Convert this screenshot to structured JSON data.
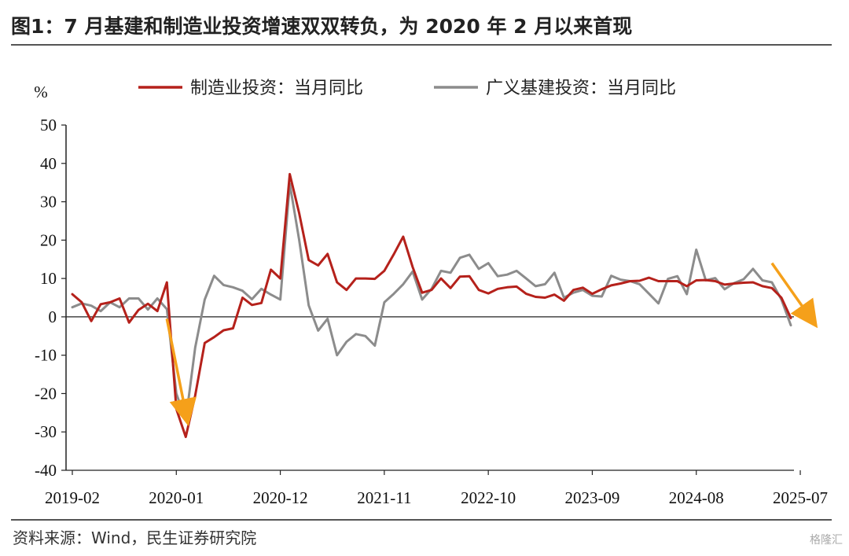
{
  "figure": {
    "title": "图1：7 月基建和制造业投资增速双双转负，为 2020 年 2 月以来首现",
    "source": "资料来源：Wind，民生证券研究院",
    "watermark": "格隆汇"
  },
  "chart_data": {
    "type": "line",
    "ylabel": "%",
    "ylim": [
      -40,
      50
    ],
    "yticks": [
      50,
      40,
      30,
      20,
      10,
      0,
      -10,
      -20,
      -30,
      -40
    ],
    "xticks": [
      "2019-02",
      "2020-01",
      "2020-12",
      "2021-11",
      "2022-10",
      "2023-09",
      "2024-08",
      "2025-07"
    ],
    "legend_position": "top",
    "grid": false,
    "series": [
      {
        "name": "制造业投资：当月同比",
        "color": "#b5211b",
        "values": [
          5.9,
          3.8,
          -1.1,
          3.3,
          3.8,
          4.8,
          -1.5,
          1.8,
          3.4,
          1.5,
          9.0,
          -24.0,
          -31.3,
          -20.5,
          -6.8,
          -5.3,
          -3.5,
          -3.0,
          5.0,
          3.1,
          3.6,
          12.3,
          10.0,
          37.2,
          27.0,
          14.8,
          13.4,
          16.4,
          9.0,
          7.0,
          10.0,
          10.0,
          9.9,
          12.0,
          16.3,
          20.9,
          13.0,
          6.3,
          7.0,
          10.0,
          7.5,
          10.5,
          10.6,
          7.0,
          6.1,
          7.3,
          7.7,
          7.9,
          6.0,
          5.2,
          5.0,
          5.8,
          4.2,
          7.0,
          7.6,
          6.0,
          7.2,
          8.2,
          8.7,
          9.3,
          9.4,
          10.2,
          9.3,
          9.3,
          9.3,
          8.0,
          9.5,
          9.6,
          9.3,
          8.4,
          8.7,
          8.9,
          9.0,
          8.0,
          7.5,
          5.0,
          -0.3
        ]
      },
      {
        "name": "广义基建投资：当月同比",
        "color": "#8c8c8c",
        "values": [
          2.5,
          3.5,
          2.9,
          1.5,
          3.8,
          2.5,
          4.8,
          4.8,
          1.9,
          4.8,
          2.0,
          -20.0,
          -27.0,
          -8.0,
          4.5,
          10.7,
          8.3,
          7.7,
          6.8,
          4.6,
          7.3,
          5.8,
          4.5,
          34.7,
          20.0,
          3.0,
          -3.6,
          -0.5,
          -10.0,
          -6.5,
          -4.5,
          -5.0,
          -7.5,
          3.8,
          6.0,
          8.5,
          11.8,
          4.5,
          7.3,
          12.0,
          11.5,
          15.4,
          16.2,
          12.5,
          14.0,
          10.6,
          11.0,
          12.0,
          10.0,
          8.0,
          8.5,
          11.5,
          5.0,
          6.3,
          7.0,
          5.5,
          5.3,
          10.7,
          9.7,
          9.3,
          8.5,
          6.0,
          3.5,
          9.9,
          10.6,
          5.9,
          17.5,
          9.5,
          10.1,
          7.2,
          8.8,
          9.8,
          12.5,
          9.5,
          9.0,
          4.5,
          -2.2
        ]
      }
    ],
    "annotations": [
      {
        "type": "arrow",
        "color": "#f5a01a",
        "from": [
          10,
          -0.5
        ],
        "to": [
          12,
          -25.0
        ]
      },
      {
        "type": "arrow",
        "color": "#f5a01a",
        "from": [
          74,
          14.0
        ],
        "to": [
          78,
          0.0
        ]
      }
    ]
  }
}
